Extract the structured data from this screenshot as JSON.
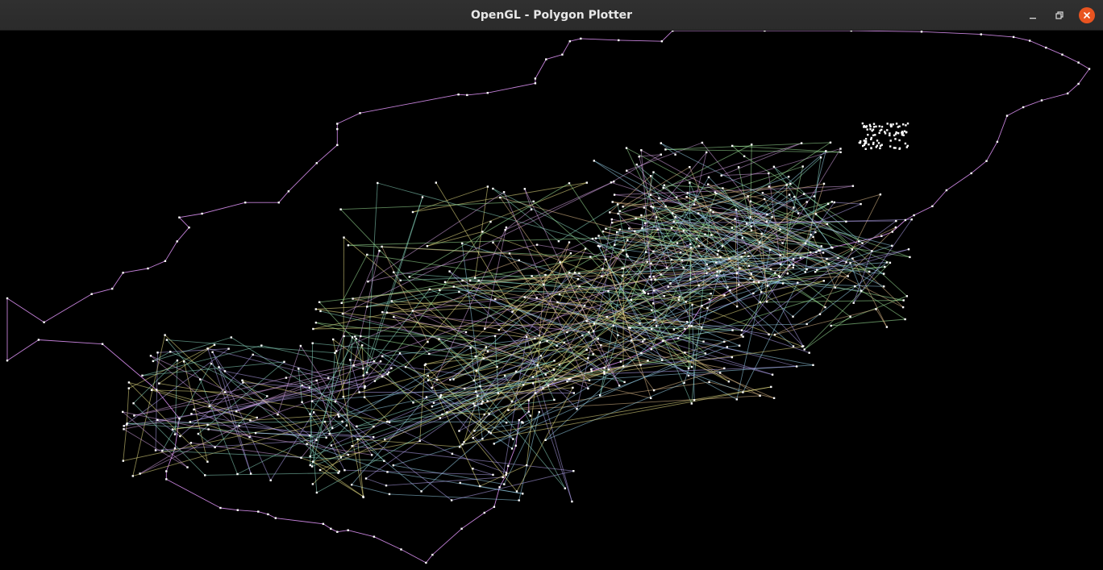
{
  "window": {
    "title": "OpenGL - Polygon Plotter",
    "controls": {
      "minimize_icon": "minimize-icon",
      "maximize_icon": "restore-icon",
      "close_icon": "close-icon"
    },
    "colors": {
      "titlebar": "#2c2c2c",
      "close_button": "#e95420",
      "canvas_background": "#000000"
    }
  },
  "plot": {
    "background": "#000000",
    "vertex_color": "#ffffff",
    "polygons": [
      {
        "color": "#d88ef0",
        "points": [
          [
            0.615,
            0.0
          ],
          [
            0.605,
            0.02
          ],
          [
            0.565,
            0.018
          ],
          [
            0.53,
            0.015
          ],
          [
            0.52,
            0.02
          ],
          [
            0.513,
            0.045
          ],
          [
            0.498,
            0.054
          ],
          [
            0.488,
            0.09
          ],
          [
            0.488,
            0.099
          ],
          [
            0.444,
            0.117
          ],
          [
            0.425,
            0.121
          ],
          [
            0.417,
            0.12
          ],
          [
            0.326,
            0.155
          ],
          [
            0.305,
            0.175
          ],
          [
            0.305,
            0.185
          ],
          [
            0.305,
            0.215
          ],
          [
            0.286,
            0.249
          ],
          [
            0.26,
            0.302
          ],
          [
            0.251,
            0.323
          ],
          [
            0.22,
            0.323
          ],
          [
            0.18,
            0.344
          ],
          [
            0.159,
            0.351
          ],
          [
            0.168,
            0.37
          ],
          [
            0.157,
            0.396
          ],
          [
            0.146,
            0.433
          ],
          [
            0.13,
            0.447
          ],
          [
            0.107,
            0.455
          ],
          [
            0.097,
            0.485
          ],
          [
            0.078,
            0.495
          ],
          [
            0.034,
            0.548
          ],
          [
            0.0,
            0.503
          ],
          [
            0.0,
            0.62
          ],
          [
            0.029,
            0.581
          ],
          [
            0.088,
            0.589
          ],
          [
            0.138,
            0.675
          ],
          [
            0.159,
            0.729
          ],
          [
            0.155,
            0.785
          ],
          [
            0.147,
            0.828
          ],
          [
            0.147,
            0.843
          ],
          [
            0.197,
            0.897
          ],
          [
            0.213,
            0.901
          ],
          [
            0.232,
            0.904
          ],
          [
            0.241,
            0.909
          ],
          [
            0.248,
            0.916
          ],
          [
            0.292,
            0.927
          ],
          [
            0.299,
            0.936
          ],
          [
            0.305,
            0.942
          ],
          [
            0.315,
            0.939
          ],
          [
            0.339,
            0.951
          ],
          [
            0.364,
            0.975
          ],
          [
            0.387,
            1.0
          ],
          [
            0.393,
            0.985
          ],
          [
            0.42,
            0.936
          ],
          [
            0.441,
            0.906
          ],
          [
            0.45,
            0.895
          ],
          [
            0.455,
            0.858
          ],
          [
            0.461,
            0.835
          ],
          [
            0.463,
            0.818
          ],
          [
            0.47,
            0.78
          ],
          [
            0.473,
            0.732
          ],
          [
            0.482,
            0.716
          ],
          [
            0.482,
            0.695
          ],
          [
            0.488,
            0.681
          ],
          [
            0.5,
            0.667
          ],
          [
            0.519,
            0.655
          ],
          [
            0.54,
            0.64
          ],
          [
            0.567,
            0.622
          ],
          [
            0.586,
            0.606
          ],
          [
            0.606,
            0.583
          ],
          [
            0.62,
            0.578
          ],
          [
            0.63,
            0.555
          ],
          [
            0.642,
            0.517
          ],
          [
            0.668,
            0.488
          ],
          [
            0.69,
            0.472
          ],
          [
            0.714,
            0.463
          ],
          [
            0.723,
            0.441
          ],
          [
            0.75,
            0.413
          ],
          [
            0.787,
            0.396
          ],
          [
            0.808,
            0.386
          ],
          [
            0.818,
            0.378
          ],
          [
            0.83,
            0.356
          ],
          [
            0.838,
            0.347
          ],
          [
            0.855,
            0.33
          ],
          [
            0.868,
            0.3
          ],
          [
            0.891,
            0.268
          ],
          [
            0.905,
            0.245
          ],
          [
            0.915,
            0.209
          ],
          [
            0.924,
            0.16
          ],
          [
            0.939,
            0.144
          ],
          [
            0.956,
            0.131
          ],
          [
            0.98,
            0.118
          ],
          [
            0.99,
            0.1
          ],
          [
            1.0,
            0.072
          ],
          [
            0.99,
            0.06
          ],
          [
            0.975,
            0.045
          ],
          [
            0.96,
            0.032
          ],
          [
            0.945,
            0.019
          ],
          [
            0.93,
            0.012
          ],
          [
            0.9,
            0.007
          ],
          [
            0.845,
            0.002
          ],
          [
            0.78,
            0.0
          ],
          [
            0.7,
            0.0
          ],
          [
            0.615,
            0.0
          ]
        ]
      }
    ]
  }
}
